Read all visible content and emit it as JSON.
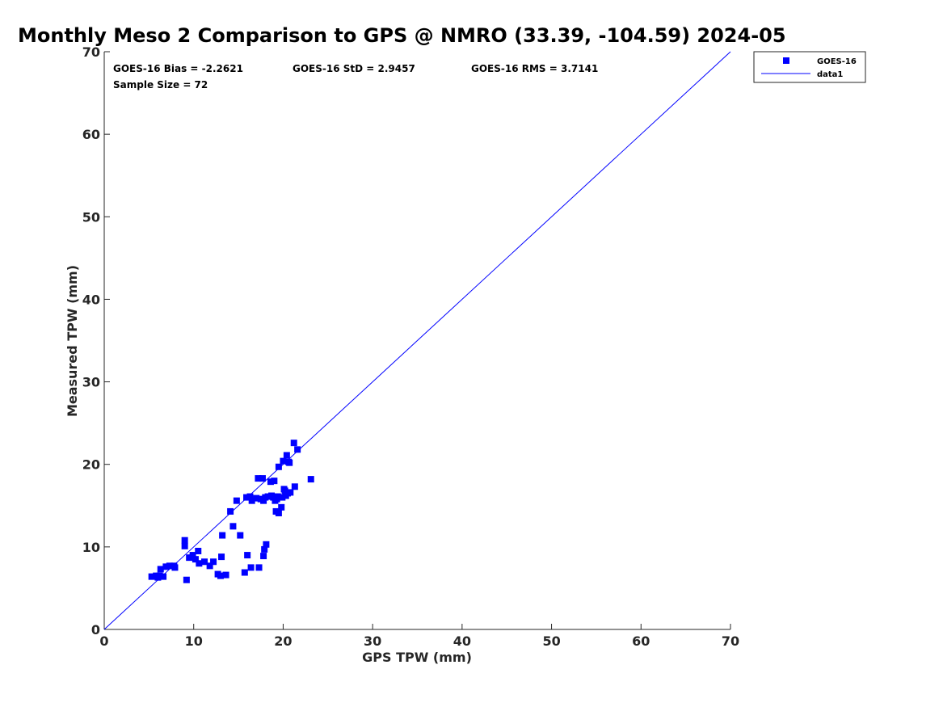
{
  "chart_data": {
    "type": "scatter",
    "title": "Monthly Meso 2 Comparison to GPS @ NMRO (33.39, -104.59) 2024-05",
    "xlabel": "GPS TPW (mm)",
    "ylabel": "Measured TPW (mm)",
    "xlim": [
      0,
      70
    ],
    "ylim": [
      0,
      70
    ],
    "xticks": [
      "0",
      "10",
      "20",
      "30",
      "40",
      "50",
      "60",
      "70"
    ],
    "yticks": [
      "0",
      "10",
      "20",
      "30",
      "40",
      "50",
      "60",
      "70"
    ],
    "grid": false,
    "legend_position": "top-right (outside plot)",
    "stats": {
      "bias": "GOES-16 Bias = -2.2621",
      "std": "GOES-16 StD = 2.9457",
      "rms": "GOES-16 RMS = 3.7141",
      "sample": "Sample Size = 72"
    },
    "series": [
      {
        "name": "GOES-16",
        "kind": "scatter",
        "marker": "square",
        "color": "#0000ff",
        "points": [
          [
            5.3,
            6.4
          ],
          [
            5.8,
            6.5
          ],
          [
            6.0,
            6.3
          ],
          [
            6.2,
            6.5
          ],
          [
            6.3,
            7.3
          ],
          [
            6.6,
            6.4
          ],
          [
            6.9,
            7.6
          ],
          [
            7.3,
            7.7
          ],
          [
            7.8,
            7.7
          ],
          [
            7.9,
            7.5
          ],
          [
            9.0,
            10.8
          ],
          [
            9.0,
            10.1
          ],
          [
            9.2,
            6.0
          ],
          [
            9.5,
            8.7
          ],
          [
            9.9,
            9.0
          ],
          [
            10.2,
            8.5
          ],
          [
            10.5,
            9.5
          ],
          [
            10.6,
            8.0
          ],
          [
            11.2,
            8.2
          ],
          [
            11.8,
            7.7
          ],
          [
            12.2,
            8.2
          ],
          [
            12.7,
            6.7
          ],
          [
            13.0,
            6.5
          ],
          [
            13.1,
            8.8
          ],
          [
            13.2,
            11.4
          ],
          [
            13.6,
            6.6
          ],
          [
            14.1,
            14.3
          ],
          [
            14.4,
            12.5
          ],
          [
            14.8,
            15.6
          ],
          [
            15.2,
            11.4
          ],
          [
            15.7,
            6.9
          ],
          [
            15.9,
            16.0
          ],
          [
            16.0,
            9.0
          ],
          [
            16.3,
            16.1
          ],
          [
            16.4,
            7.5
          ],
          [
            16.5,
            15.6
          ],
          [
            17.0,
            15.9
          ],
          [
            17.2,
            18.3
          ],
          [
            17.3,
            7.5
          ],
          [
            17.7,
            18.3
          ],
          [
            17.8,
            8.9
          ],
          [
            17.8,
            15.6
          ],
          [
            17.9,
            9.7
          ],
          [
            18.0,
            16.0
          ],
          [
            18.1,
            10.3
          ],
          [
            18.3,
            16.1
          ],
          [
            18.6,
            17.9
          ],
          [
            18.7,
            16.2
          ],
          [
            18.9,
            16.0
          ],
          [
            19.0,
            18.0
          ],
          [
            19.1,
            15.6
          ],
          [
            19.2,
            14.3
          ],
          [
            19.3,
            15.8
          ],
          [
            19.4,
            16.1
          ],
          [
            19.5,
            19.7
          ],
          [
            19.5,
            14.1
          ],
          [
            19.8,
            14.8
          ],
          [
            19.9,
            16.0
          ],
          [
            20.0,
            20.4
          ],
          [
            20.1,
            17.0
          ],
          [
            20.2,
            16.8
          ],
          [
            20.3,
            16.2
          ],
          [
            20.4,
            21.1
          ],
          [
            20.5,
            16.5
          ],
          [
            20.6,
            20.3
          ],
          [
            20.7,
            20.2
          ],
          [
            20.8,
            16.6
          ],
          [
            21.2,
            22.6
          ],
          [
            21.3,
            17.3
          ],
          [
            21.6,
            21.8
          ],
          [
            23.1,
            18.2
          ],
          [
            17.5,
            15.8
          ]
        ]
      },
      {
        "name": "data1",
        "kind": "line",
        "color": "#0000ff",
        "points": [
          [
            0,
            0
          ],
          [
            70,
            70
          ]
        ]
      }
    ]
  }
}
